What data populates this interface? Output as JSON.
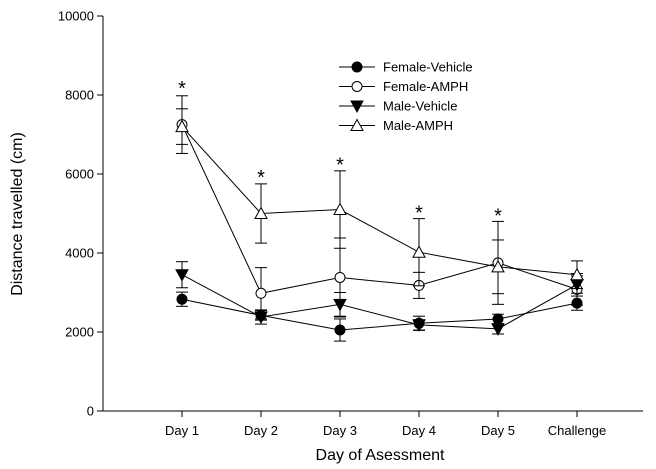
{
  "chart_data": {
    "type": "line",
    "title": "",
    "xlabel": "Day of Asessment",
    "ylabel": "Distance travelled (cm)",
    "ylim": [
      0,
      10000
    ],
    "yticks": [
      "0",
      "2000",
      "4000",
      "6000",
      "8000",
      "10000"
    ],
    "categories": [
      "Day 1",
      "Day 2",
      "Day 3",
      "Day 4",
      "Day 5",
      "Challenge"
    ],
    "grid": false,
    "legend_position": "top-right",
    "series": [
      {
        "name": "Female-Vehicle",
        "marker": "circle-filled",
        "values": [
          2830,
          2420,
          2050,
          2220,
          2330,
          2730
        ],
        "errors": [
          180,
          120,
          280,
          180,
          120,
          180
        ]
      },
      {
        "name": "Female-AMPH",
        "marker": "circle-open",
        "values": [
          7250,
          2980,
          3380,
          3180,
          3750,
          3080
        ],
        "errors": [
          730,
          650,
          1000,
          330,
          1050,
          400
        ]
      },
      {
        "name": "Male-Vehicle",
        "marker": "triangle-down-filled",
        "values": [
          3450,
          2380,
          2700,
          2180,
          2080,
          3200
        ],
        "errors": [
          330,
          180,
          300,
          130,
          130,
          220
        ]
      },
      {
        "name": "Male-AMPH",
        "marker": "triangle-up-open",
        "values": [
          7200,
          5000,
          5100,
          4020,
          3650,
          3450
        ],
        "errors": [
          450,
          750,
          980,
          850,
          680,
          350
        ]
      }
    ],
    "annotations": [
      {
        "text": "*",
        "category": "Day 1",
        "y": 8250
      },
      {
        "text": "*",
        "category": "Day 2",
        "y": 6000
      },
      {
        "text": "*",
        "category": "Day 3",
        "y": 6320
      },
      {
        "text": "*",
        "category": "Day 4",
        "y": 5100
      },
      {
        "text": "*",
        "category": "Day 5",
        "y": 5030
      }
    ]
  }
}
